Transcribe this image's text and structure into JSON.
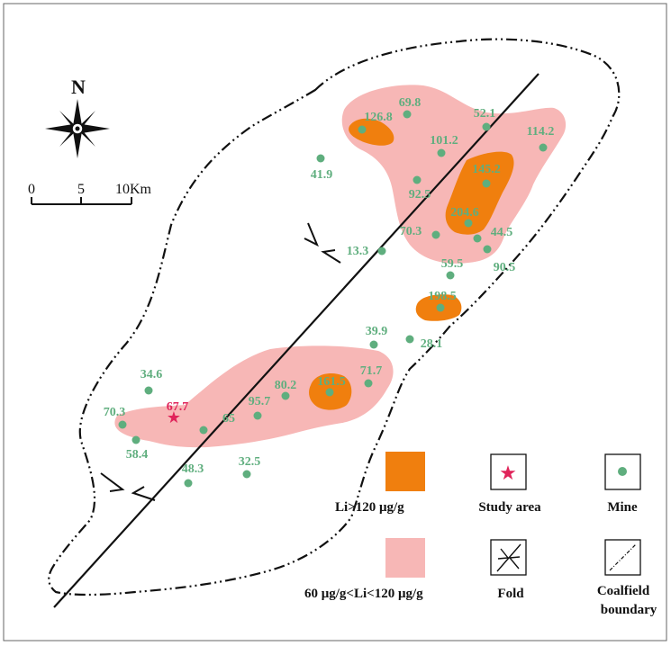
{
  "colors": {
    "high": "#f07f0e",
    "mid": "#f7b7b6",
    "mine": "#5fae7e",
    "label": "#5fae7e",
    "study": "#e0245a",
    "line": "#111111"
  },
  "north": "N",
  "scale": {
    "ticks": [
      "0",
      "5",
      "10Km"
    ]
  },
  "mines": [
    {
      "label": "126.8"
    },
    {
      "label": "69.8"
    },
    {
      "label": "52.1"
    },
    {
      "label": "114.2"
    },
    {
      "label": "101.2"
    },
    {
      "label": "41.9"
    },
    {
      "label": "145.2"
    },
    {
      "label": "92.5"
    },
    {
      "label": "204.6"
    },
    {
      "label": "70.3"
    },
    {
      "label": "44.5"
    },
    {
      "label": "13.3"
    },
    {
      "label": "90.5"
    },
    {
      "label": "59.5"
    },
    {
      "label": "198.5"
    },
    {
      "label": "39.9"
    },
    {
      "label": "28.1"
    },
    {
      "label": "71.7"
    },
    {
      "label": "161.5"
    },
    {
      "label": "80.2"
    },
    {
      "label": "34.6"
    },
    {
      "label": "95.7"
    },
    {
      "label": "65"
    },
    {
      "label": "70.3"
    },
    {
      "label": "58.4"
    },
    {
      "label": "48.3"
    },
    {
      "label": "32.5"
    }
  ],
  "study_area": {
    "label": "67.7"
  },
  "legend": {
    "high": "Li>120  μg/g",
    "mid": "60  μg/g<Li<120  μg/g",
    "study": "Study area",
    "fold": "Fold",
    "mine": "Mine",
    "boundary_line1": "Coalfield",
    "boundary_line2": "boundary"
  }
}
